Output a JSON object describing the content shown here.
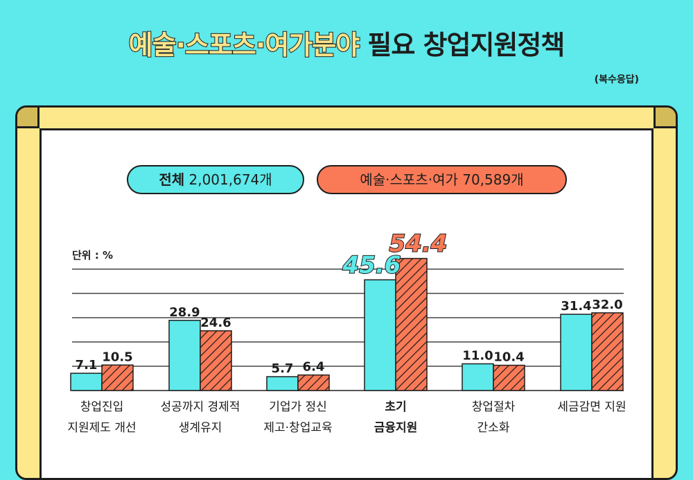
{
  "header": {
    "title_part1": "예술·스포츠·여가분야",
    "title_part2": "필요 창업지원정책",
    "note": "(복수응답)"
  },
  "legend": {
    "total_label": "전체",
    "total_count": "2,001,674개",
    "arts_label": "예술·스포츠·여가",
    "arts_count": "70,589개"
  },
  "unit_label": "단위 : %",
  "colors": {
    "total": "#5ee9ea",
    "arts": "#fa7a57",
    "outline": "#1d1d1d"
  },
  "chart_data": {
    "type": "bar",
    "categories": [
      [
        "창업진입",
        "지원제도 개선"
      ],
      [
        "성공까지 경제적",
        "생계유지"
      ],
      [
        "기업가 정신",
        "제고·창업교육"
      ],
      [
        "초기",
        "금융지원"
      ],
      [
        "창업절차",
        "간소화"
      ],
      [
        "세금감면 지원"
      ]
    ],
    "highlight_category_index": 3,
    "series": [
      {
        "name": "전체 2,001,674개",
        "values": [
          7.1,
          28.9,
          5.7,
          45.6,
          11.0,
          31.4
        ],
        "labels": [
          "7.1",
          "28.9",
          "5.7",
          "45.6",
          "11.0",
          "31.4"
        ]
      },
      {
        "name": "예술·스포츠·여가 70,589개",
        "values": [
          10.5,
          24.6,
          6.4,
          54.4,
          10.4,
          32.0
        ],
        "labels": [
          "10.5",
          "24.6",
          "6.4",
          "54.4",
          "10.4",
          "32.0"
        ]
      }
    ],
    "ylim": [
      0,
      60
    ],
    "grid": true
  }
}
